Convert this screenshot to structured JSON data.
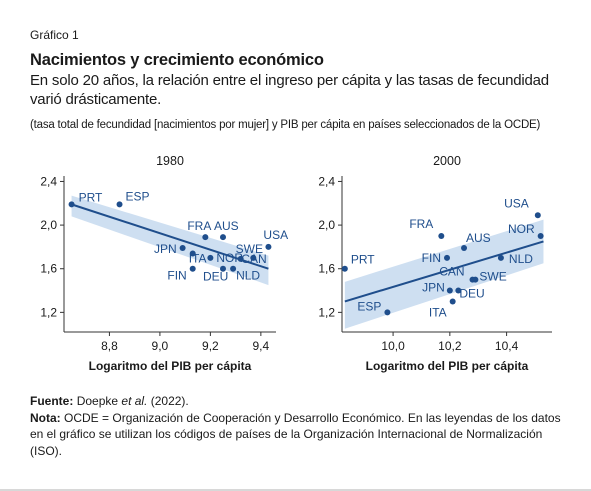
{
  "figure_label": "Gráfico 1",
  "title": "Nacimientos y crecimiento económico",
  "subtitle": "En solo 20 años, la relación entre el ingreso per cápita y las tasas de fecundidad varió drásticamente.",
  "note_subtitle": "(tasa total de fecundidad [nacimientos por mujer] y PIB per cápita en países seleccionados de la OCDE)",
  "footer": {
    "source_label": "Fuente:",
    "source_text_pre": "Doepke ",
    "source_text_em": "et al.",
    "source_text_post": " (2022).",
    "note_label": "Nota:",
    "note_text": "OCDE = Organización de Cooperación y Desarrollo Económico. En las leyendas de los datos en el gráfico se utilizan los códigos de países de la Organización Internacional de Normalización (ISO)."
  },
  "colors": {
    "points": "#1f4e8c",
    "line": "#1f4e8c",
    "band": "#c9dbef",
    "label": "#1f4e8c",
    "axis": "#333333"
  },
  "chart_data": [
    {
      "type": "scatter",
      "title": "1980",
      "xlabel": "Logaritmo del PIB per cápita",
      "ylabel": "",
      "xlim": [
        8.62,
        9.46
      ],
      "ylim": [
        1.02,
        2.45
      ],
      "xticks": [
        8.8,
        9.0,
        9.2,
        9.4
      ],
      "xtick_labels": [
        "8,8",
        "9,0",
        "9,2",
        "9,4"
      ],
      "yticks": [
        1.2,
        1.6,
        2.0,
        2.4
      ],
      "ytick_labels": [
        "1,2",
        "1,6",
        "2,0",
        "2,4"
      ],
      "points": [
        {
          "code": "PRT",
          "x": 8.65,
          "y": 2.19
        },
        {
          "code": "ESP",
          "x": 8.84,
          "y": 2.19
        },
        {
          "code": "JPN",
          "x": 9.09,
          "y": 1.79
        },
        {
          "code": "FRA",
          "x": 9.18,
          "y": 1.89
        },
        {
          "code": "AUS",
          "x": 9.25,
          "y": 1.89
        },
        {
          "code": "ITA",
          "x": 9.13,
          "y": 1.74
        },
        {
          "code": "FIN",
          "x": 9.13,
          "y": 1.6
        },
        {
          "code": "NOR",
          "x": 9.2,
          "y": 1.7
        },
        {
          "code": "DEU",
          "x": 9.25,
          "y": 1.6
        },
        {
          "code": "SWE",
          "x": 9.32,
          "y": 1.69
        },
        {
          "code": "NLD",
          "x": 9.29,
          "y": 1.6
        },
        {
          "code": "USA",
          "x": 9.43,
          "y": 1.8
        },
        {
          "code": "CAN",
          "x": 9.37,
          "y": 1.7
        }
      ],
      "trend": {
        "x0": 8.65,
        "y0": 2.19,
        "x1": 9.43,
        "y1": 1.6
      },
      "band": {
        "upper": [
          2.27,
          1.72
        ],
        "lower": [
          2.08,
          1.45
        ]
      }
    },
    {
      "type": "scatter",
      "title": "2000",
      "xlabel": "Logaritmo del PIB per cápita",
      "ylabel": "",
      "xlim": [
        9.82,
        10.56
      ],
      "ylim": [
        1.02,
        2.45
      ],
      "xticks": [
        10.0,
        10.2,
        10.4
      ],
      "xtick_labels": [
        "10,0",
        "10,2",
        "10,4"
      ],
      "yticks": [
        1.2,
        1.6,
        2.0,
        2.4
      ],
      "ytick_labels": [
        "1,2",
        "1,6",
        "2,0",
        "2,4"
      ],
      "points": [
        {
          "code": "PRT",
          "x": 9.83,
          "y": 1.6
        },
        {
          "code": "ESP",
          "x": 9.98,
          "y": 1.2
        },
        {
          "code": "FRA",
          "x": 10.17,
          "y": 1.9
        },
        {
          "code": "AUS",
          "x": 10.25,
          "y": 1.79
        },
        {
          "code": "FIN",
          "x": 10.19,
          "y": 1.7
        },
        {
          "code": "USA",
          "x": 10.51,
          "y": 2.09
        },
        {
          "code": "NOR",
          "x": 10.52,
          "y": 1.9
        },
        {
          "code": "SWE",
          "x": 10.29,
          "y": 1.5
        },
        {
          "code": "CAN",
          "x": 10.28,
          "y": 1.5
        },
        {
          "code": "NLD",
          "x": 10.38,
          "y": 1.7
        },
        {
          "code": "JPN",
          "x": 10.2,
          "y": 1.4
        },
        {
          "code": "DEU",
          "x": 10.23,
          "y": 1.4
        },
        {
          "code": "ITA",
          "x": 10.21,
          "y": 1.3
        }
      ],
      "trend": {
        "x0": 9.83,
        "y0": 1.3,
        "x1": 10.53,
        "y1": 1.85
      },
      "band": {
        "upper": [
          1.48,
          2.05
        ],
        "lower": [
          1.05,
          1.65
        ]
      }
    }
  ]
}
